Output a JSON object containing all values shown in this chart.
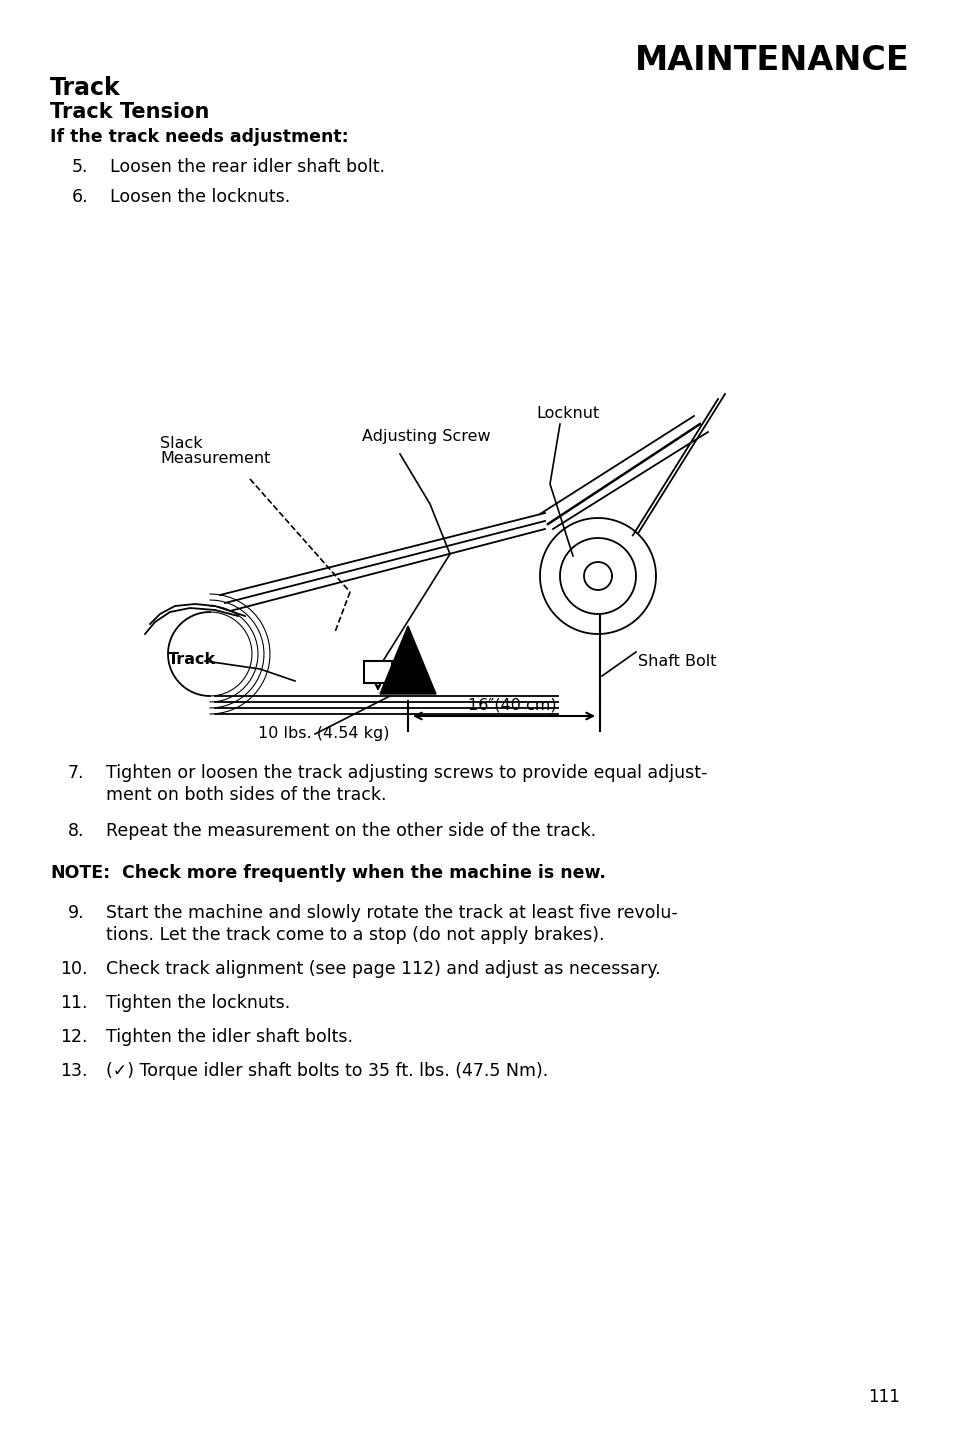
{
  "title": "MAINTENANCE",
  "section_title": "Track",
  "subsection_title": "Track Tension",
  "condition": "If the track needs adjustment:",
  "steps_before_diagram": [
    {
      "num": "5.",
      "text": "Loosen the rear idler shaft bolt."
    },
    {
      "num": "6.",
      "text": "Loosen the locknuts."
    }
  ],
  "diagram_labels": {
    "slack": "Slack\nMeasurement",
    "adjusting_screw": "Adjusting Screw",
    "locknut": "Locknut",
    "track": "Track",
    "shaft_bolt": "Shaft Bolt",
    "measurement": "16″(40 cm)",
    "force": "10 lbs. (4.54 kg)"
  },
  "steps_after_diagram": [
    {
      "num": "7.",
      "text": "Tighten or loosen the track adjusting screws to provide equal adjust-\nment on both sides of the track."
    },
    {
      "num": "8.",
      "text": "Repeat the measurement on the other side of the track."
    }
  ],
  "note_bold": "NOTE:",
  "note_rest": "  Check more frequently when the machine is new.",
  "steps_final": [
    {
      "num": "9.",
      "text": "Start the machine and slowly rotate the track at least five revolu-\ntions. Let the track come to a stop (do not apply brakes)."
    },
    {
      "num": "10.",
      "text": "Check track alignment (see page 112) and adjust as necessary."
    },
    {
      "num": "11.",
      "text": "Tighten the locknuts."
    },
    {
      "num": "12.",
      "text": "Tighten the idler shaft bolts."
    },
    {
      "num": "13.",
      "text": "(✓) Torque idler shaft bolts to 35 ft. lbs. (47.5 Nm)."
    }
  ],
  "page_number": "111",
  "bg_color": "#ffffff",
  "text_color": "#000000"
}
